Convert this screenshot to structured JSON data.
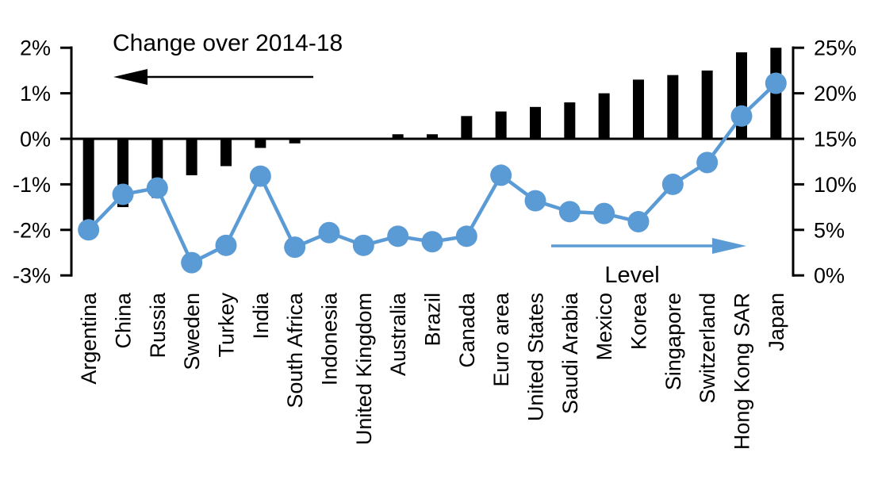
{
  "chart_data": {
    "type": "combo-bar-line",
    "title": "Change over 2014-18",
    "grid": "off",
    "legend_position": "in-plot arrow annotations",
    "categories": [
      "Argentina",
      "China",
      "Russia",
      "Sweden",
      "Turkey",
      "India",
      "South Africa",
      "Indonesia",
      "United Kingdom",
      "Australia",
      "Brazil",
      "Canada",
      "Euro area",
      "United States",
      "Saudi Arabia",
      "Mexico",
      "Korea",
      "Singapore",
      "Switzerland",
      "Hong Kong SAR",
      "Japan"
    ],
    "series": [
      {
        "name": "Change over 2014-18",
        "type": "bar",
        "axis": "left",
        "color": "#000000",
        "values": [
          -1.8,
          -1.5,
          -1.3,
          -0.8,
          -0.6,
          -0.2,
          -0.1,
          0.0,
          0.0,
          0.1,
          0.1,
          0.5,
          0.6,
          0.7,
          0.8,
          1.0,
          1.3,
          1.4,
          1.5,
          1.9,
          2.0
        ]
      },
      {
        "name": "Level",
        "type": "line",
        "axis": "right",
        "color": "#5B9BD5",
        "values": [
          5.0,
          8.9,
          9.6,
          1.4,
          3.3,
          10.9,
          3.1,
          4.7,
          3.3,
          4.3,
          3.7,
          4.3,
          11.0,
          8.2,
          7.0,
          6.8,
          5.9,
          10.0,
          12.4,
          17.5,
          21.1
        ]
      }
    ],
    "left_axis": {
      "min": -3,
      "max": 2,
      "unit": "%",
      "tick_values": [
        2,
        1,
        0,
        -1,
        -2,
        -3
      ],
      "tick_labels": [
        "2%",
        "1%",
        "0%",
        "-1%",
        "-2%",
        "-3%"
      ]
    },
    "right_axis": {
      "min": 0,
      "max": 25,
      "unit": "%",
      "tick_values": [
        25,
        20,
        15,
        10,
        5,
        0
      ],
      "tick_labels": [
        "25%",
        "20%",
        "15%",
        "10%",
        "5%",
        "0%"
      ]
    },
    "annotations": {
      "bar_series_label": "Change over 2014-18",
      "bar_arrow_direction": "left",
      "line_series_label": "Level",
      "line_arrow_direction": "right"
    }
  },
  "colors": {
    "background": "#FFFFFF",
    "bar": "#000000",
    "line": "#5B9BD5",
    "axis": "#000000",
    "text": "#000000"
  }
}
